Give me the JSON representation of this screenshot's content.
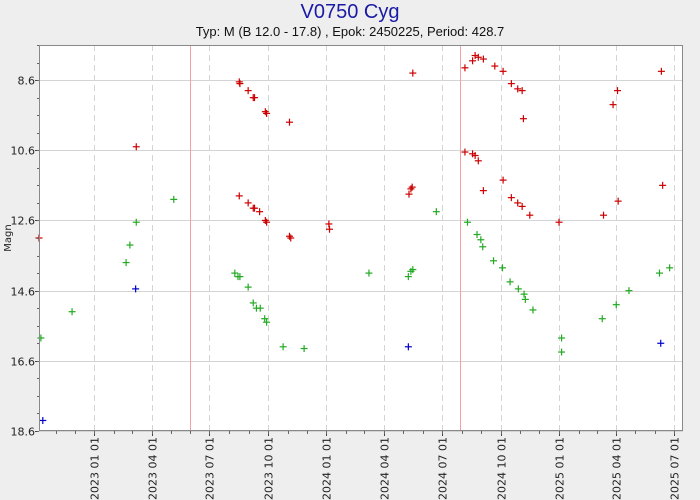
{
  "chart_data": {
    "type": "scatter",
    "title": "V0750 Cyg",
    "subtitle": "Typ: M (B 12.0 - 17.8) , Epok: 2450225, Period: 428.7",
    "ylabel": "Magn",
    "xlabel": "",
    "x_is_date": true,
    "xlim": [
      "2022-10-06",
      "2025-07-15"
    ],
    "ylim": [
      18.6,
      7.6
    ],
    "y_inverted": true,
    "grid": true,
    "legend": "none",
    "y_ticks": [
      8.6,
      10.6,
      12.6,
      14.6,
      16.6,
      18.6
    ],
    "x_ticks": [
      "2023-01-01",
      "2023-04-01",
      "2023-07-01",
      "2023-10-01",
      "2024-01-01",
      "2024-04-01",
      "2024-07-01",
      "2024-10-01",
      "2025-01-01",
      "2025-04-01",
      "2025-07-01"
    ],
    "x_tick_labels": [
      "2023 01 01",
      "2023 04 01",
      "2023 07 01",
      "2023 10 01",
      "2024 01 01",
      "2024 04 01",
      "2024 07 01",
      "2024 10 01",
      "2025 01 01",
      "2025 04 01",
      "2025 07 01"
    ],
    "minima_lines": [
      "2023-06-01",
      "2024-07-29"
    ],
    "colors": {
      "background": "#eeeeee",
      "plot_background": "#ffffff",
      "grid": "#d4d4d4",
      "minima": "#f2a0a0",
      "title": "#1a1aa6"
    },
    "series": [
      {
        "color": "#cc0000",
        "points": [
          [
            "2022-10-06",
            13.1
          ],
          [
            "2023-03-08",
            10.5
          ],
          [
            "2023-08-17",
            8.65
          ],
          [
            "2023-08-18",
            8.7
          ],
          [
            "2023-08-31",
            8.9
          ],
          [
            "2023-09-08",
            9.1
          ],
          [
            "2023-09-10",
            9.1
          ],
          [
            "2023-09-27",
            9.5
          ],
          [
            "2023-09-29",
            9.55
          ],
          [
            "2023-11-04",
            9.8
          ],
          [
            "2023-08-17",
            11.9
          ],
          [
            "2023-08-31",
            12.1
          ],
          [
            "2023-09-08",
            12.25
          ],
          [
            "2023-09-10",
            12.25
          ],
          [
            "2023-09-18",
            12.35
          ],
          [
            "2023-09-27",
            12.6
          ],
          [
            "2023-09-29",
            12.65
          ],
          [
            "2023-11-04",
            13.05
          ],
          [
            "2023-11-06",
            13.1
          ],
          [
            "2024-01-05",
            12.7
          ],
          [
            "2024-01-06",
            12.85
          ],
          [
            "2024-05-10",
            11.85
          ],
          [
            "2024-05-13",
            11.7
          ],
          [
            "2024-05-15",
            11.65
          ],
          [
            "2024-05-16",
            8.4
          ],
          [
            "2024-08-06",
            8.25
          ],
          [
            "2024-08-18",
            8.05
          ],
          [
            "2024-08-22",
            7.9
          ],
          [
            "2024-08-27",
            7.95
          ],
          [
            "2024-09-04",
            8.0
          ],
          [
            "2024-09-22",
            8.2
          ],
          [
            "2024-10-05",
            8.35
          ],
          [
            "2024-10-18",
            8.7
          ],
          [
            "2024-10-28",
            8.85
          ],
          [
            "2024-11-04",
            8.9
          ],
          [
            "2024-11-06",
            9.7
          ],
          [
            "2024-08-06",
            10.65
          ],
          [
            "2024-08-18",
            10.7
          ],
          [
            "2024-08-22",
            10.75
          ],
          [
            "2024-08-27",
            10.9
          ],
          [
            "2024-09-04",
            11.75
          ],
          [
            "2024-10-05",
            11.45
          ],
          [
            "2024-10-18",
            11.95
          ],
          [
            "2024-10-28",
            12.1
          ],
          [
            "2024-11-04",
            12.2
          ],
          [
            "2024-11-16",
            12.45
          ],
          [
            "2025-01-01",
            12.65
          ],
          [
            "2025-03-12",
            12.45
          ],
          [
            "2025-03-27",
            9.3
          ],
          [
            "2025-04-03",
            8.9
          ],
          [
            "2025-04-04",
            12.05
          ],
          [
            "2025-06-11",
            8.35
          ],
          [
            "2025-06-13",
            11.6
          ]
        ]
      },
      {
        "color": "#22aa22",
        "points": [
          [
            "2022-10-09",
            15.95
          ],
          [
            "2022-11-27",
            15.2
          ],
          [
            "2023-02-20",
            13.8
          ],
          [
            "2023-02-26",
            13.3
          ],
          [
            "2023-03-08",
            12.65
          ],
          [
            "2023-05-06",
            12.0
          ],
          [
            "2023-08-10",
            14.1
          ],
          [
            "2023-08-15",
            14.2
          ],
          [
            "2023-08-18",
            14.2
          ],
          [
            "2023-08-31",
            14.5
          ],
          [
            "2023-09-08",
            14.95
          ],
          [
            "2023-09-13",
            15.1
          ],
          [
            "2023-09-19",
            15.1
          ],
          [
            "2023-09-26",
            15.4
          ],
          [
            "2023-09-29",
            15.5
          ],
          [
            "2023-10-25",
            16.2
          ],
          [
            "2023-11-27",
            16.25
          ],
          [
            "2024-03-08",
            14.1
          ],
          [
            "2024-05-09",
            14.2
          ],
          [
            "2024-05-13",
            14.05
          ],
          [
            "2024-05-16",
            14.0
          ],
          [
            "2024-06-22",
            12.35
          ],
          [
            "2024-08-10",
            12.65
          ],
          [
            "2024-08-25",
            13.0
          ],
          [
            "2024-08-31",
            13.15
          ],
          [
            "2024-09-03",
            13.35
          ],
          [
            "2024-09-20",
            13.75
          ],
          [
            "2024-10-04",
            13.95
          ],
          [
            "2024-10-16",
            14.35
          ],
          [
            "2024-10-29",
            14.55
          ],
          [
            "2024-11-07",
            14.7
          ],
          [
            "2024-11-09",
            14.85
          ],
          [
            "2024-11-21",
            15.15
          ],
          [
            "2025-01-05",
            15.95
          ],
          [
            "2025-01-05",
            16.35
          ],
          [
            "2025-03-10",
            15.4
          ],
          [
            "2025-04-01",
            15.0
          ],
          [
            "2025-04-21",
            14.6
          ],
          [
            "2025-06-08",
            14.1
          ],
          [
            "2025-06-24",
            13.95
          ]
        ]
      },
      {
        "color": "#0000cc",
        "points": [
          [
            "2022-10-12",
            18.3
          ],
          [
            "2023-03-07",
            14.55
          ],
          [
            "2024-05-09",
            16.2
          ],
          [
            "2025-06-10",
            16.1
          ]
        ]
      }
    ]
  }
}
